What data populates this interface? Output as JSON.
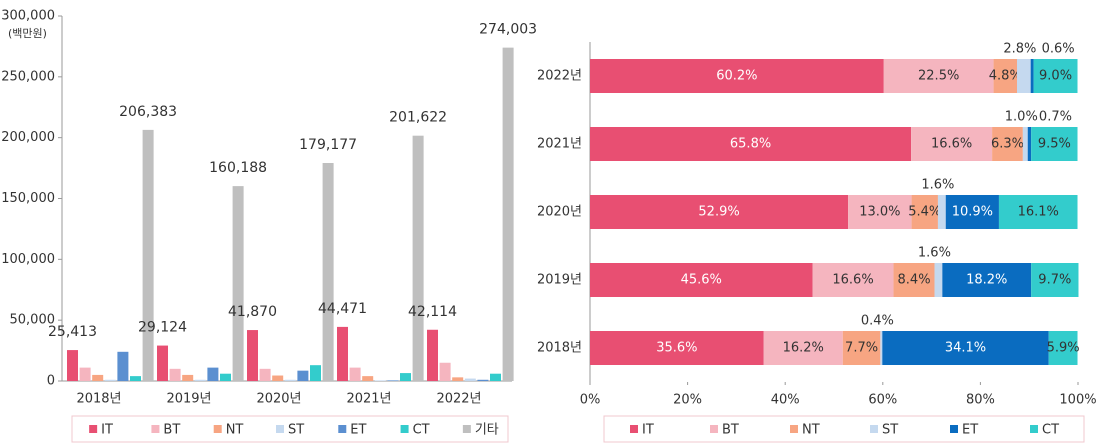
{
  "chart_data": [
    {
      "type": "bar",
      "y_label": "(백만원)",
      "categories": [
        "2018년",
        "2019년",
        "2020년",
        "2021년",
        "2022년"
      ],
      "ylim": [
        0,
        300000
      ],
      "yticks": [
        0,
        {
          "value": 50000,
          "label": "50,000"
        },
        {
          "value": 100000,
          "label": "100,000"
        },
        {
          "value": 150000,
          "label": "150,000"
        },
        {
          "value": 200000,
          "label": "200,000"
        },
        {
          "value": 250000,
          "label": "250,000"
        },
        {
          "value": 300000,
          "label": "300,000"
        }
      ],
      "legend": "bottom",
      "series": [
        {
          "name": "IT",
          "color": "#e84f72",
          "values": [
            25413,
            29124,
            41870,
            44471,
            42114
          ],
          "value_labels": [
            "25,413",
            "29,124",
            "41,870",
            "44,471",
            "42,114"
          ]
        },
        {
          "name": "BT",
          "color": "#f5b5bf",
          "values": [
            11000,
            10000,
            10000,
            11000,
            15000
          ]
        },
        {
          "name": "NT",
          "color": "#f7a582",
          "values": [
            5000,
            5000,
            4500,
            4000,
            3000
          ]
        },
        {
          "name": "ST",
          "color": "#c5d9ef",
          "values": [
            1000,
            1000,
            1000,
            500,
            2000
          ]
        },
        {
          "name": "ET",
          "color": "#5b8fd0",
          "values": [
            24000,
            11000,
            8500,
            500,
            1000
          ]
        },
        {
          "name": "CT",
          "color": "#33cccc",
          "values": [
            4000,
            6000,
            13000,
            6500,
            6000
          ]
        },
        {
          "name": "기타",
          "color": "#bfbfbf",
          "values": [
            206383,
            160188,
            179177,
            201622,
            274003
          ],
          "value_labels": [
            "206,383",
            "160,188",
            "179,177",
            "201,622",
            "274,003"
          ]
        }
      ]
    },
    {
      "type": "hbar",
      "categories": [
        "2022년",
        "2021년",
        "2020년",
        "2019년",
        "2018년"
      ],
      "xlim": [
        0,
        100
      ],
      "xticks": [
        {
          "value": 0,
          "label": "0%"
        },
        {
          "value": 20,
          "label": "20%"
        },
        {
          "value": 40,
          "label": "40%"
        },
        {
          "value": 60,
          "label": "60%"
        },
        {
          "value": 80,
          "label": "80%"
        },
        {
          "value": 100,
          "label": "100%"
        }
      ],
      "legend": "bottom",
      "series": [
        {
          "name": "IT",
          "color": "#e84f72",
          "values": [
            60.2,
            65.8,
            52.9,
            45.6,
            35.6
          ],
          "value_labels": [
            "60.2%",
            "65.8%",
            "52.9%",
            "45.6%",
            "35.6%"
          ]
        },
        {
          "name": "BT",
          "color": "#f5b5bf",
          "values": [
            22.5,
            16.6,
            13.0,
            16.6,
            16.2
          ],
          "value_labels": [
            "22.5%",
            "16.6%",
            "13.0%",
            "16.6%",
            "16.2%"
          ]
        },
        {
          "name": "NT",
          "color": "#f7a582",
          "values": [
            4.8,
            6.3,
            5.4,
            8.4,
            7.7
          ],
          "value_labels": [
            "4.8%",
            "6.3%",
            "5.4%",
            "8.4%",
            "7.7%"
          ]
        },
        {
          "name": "ST",
          "color": "#c5d9ef",
          "values": [
            2.8,
            1.0,
            1.6,
            1.6,
            0.4
          ],
          "value_labels": [
            "2.8%",
            "1.0%",
            "1.6%",
            "1.6%",
            "0.4%"
          ]
        },
        {
          "name": "ET",
          "color": "#0a6cc0",
          "values": [
            0.6,
            0.7,
            10.9,
            18.2,
            34.1
          ],
          "value_labels": [
            "0.6%",
            "0.7%",
            "10.9%",
            "18.2%",
            "34.1%"
          ]
        },
        {
          "name": "CT",
          "color": "#33cccc",
          "values": [
            9.0,
            9.5,
            16.1,
            9.7,
            5.9
          ],
          "value_labels": [
            "9.0%",
            "9.5%",
            "16.1%",
            "9.7%",
            "5.9%"
          ]
        }
      ]
    }
  ]
}
